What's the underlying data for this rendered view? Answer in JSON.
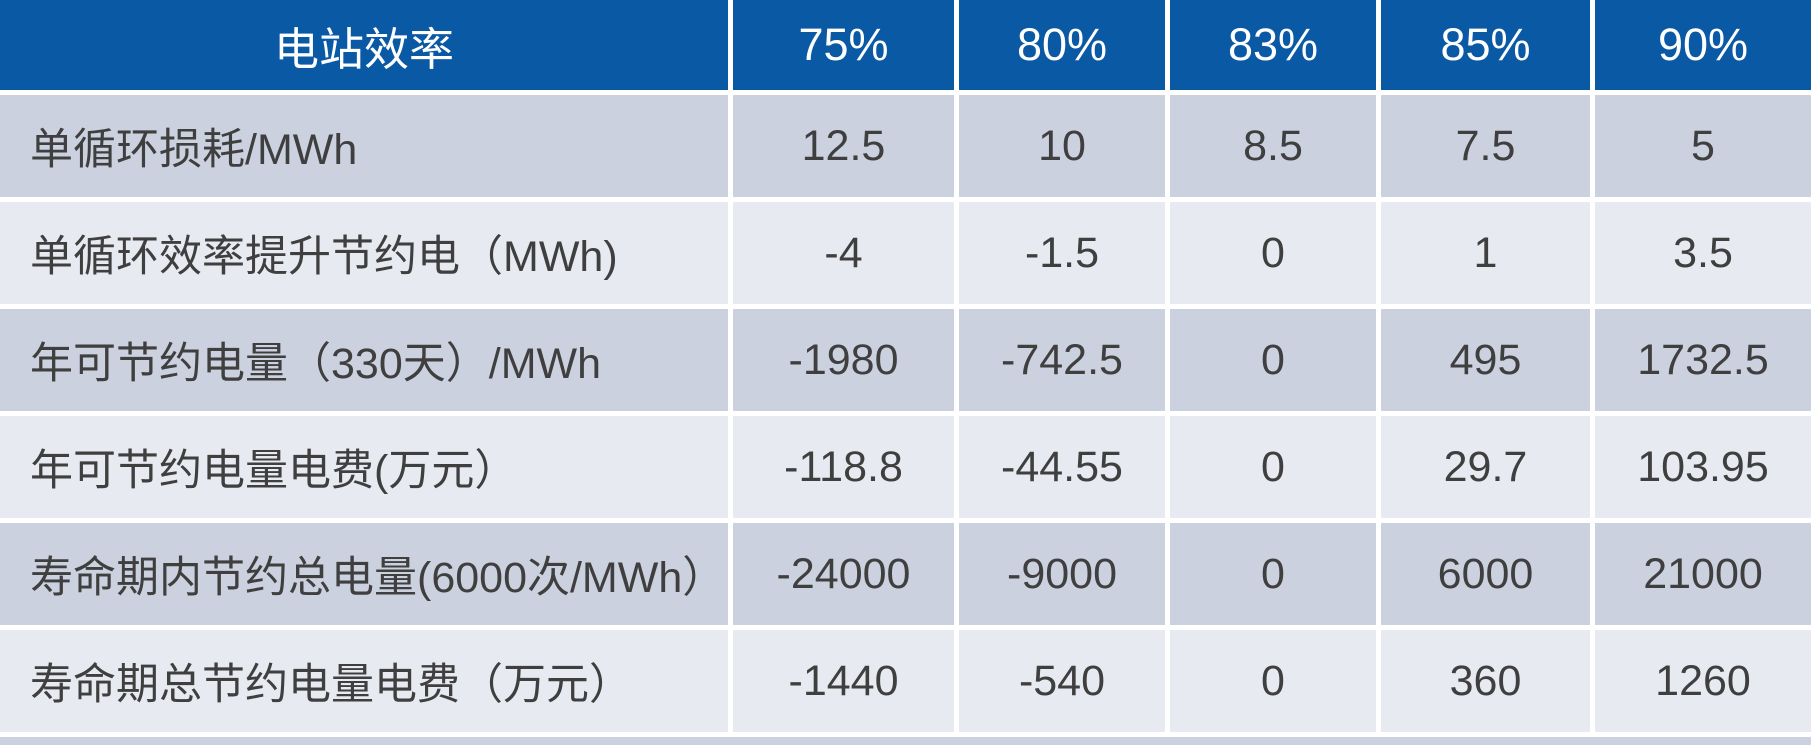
{
  "colors": {
    "header_bg": "#0a59a5",
    "header_text": "#ffffff",
    "row_odd_bg": "#ccd1e0",
    "row_even_bg": "#e8eaf1",
    "cell_text": "#3f3f3f",
    "divider": "#ffffff"
  },
  "table": {
    "header_label": "电站效率",
    "header_columns": [
      "75%",
      "80%",
      "83%",
      "85%",
      "90%"
    ],
    "rows": [
      {
        "label": "单循环损耗/MWh",
        "values": [
          "12.5",
          "10",
          "8.5",
          "7.5",
          "5"
        ]
      },
      {
        "label": "单循环效率提升节约电（MWh)",
        "values": [
          "-4",
          "-1.5",
          "0",
          "1",
          "3.5"
        ]
      },
      {
        "label": "年可节约电量（330天）/MWh",
        "values": [
          "-1980",
          "-742.5",
          "0",
          "495",
          "1732.5"
        ]
      },
      {
        "label": "年可节约电量电费(万元）",
        "values": [
          "-118.8",
          "-44.55",
          "0",
          "29.7",
          "103.95"
        ]
      },
      {
        "label": "寿命期内节约总电量(6000次/MWh）",
        "values": [
          "-24000",
          "-9000",
          "0",
          "6000",
          "21000"
        ]
      },
      {
        "label": "寿命期总节约电量电费（万元）",
        "values": [
          "-1440",
          "-540",
          "0",
          "360",
          "1260"
        ]
      }
    ]
  },
  "chart_data": {
    "type": "table",
    "title": "电站效率",
    "categories": [
      "75%",
      "80%",
      "83%",
      "85%",
      "90%"
    ],
    "series": [
      {
        "name": "单循环损耗/MWh",
        "values": [
          12.5,
          10,
          8.5,
          7.5,
          5
        ]
      },
      {
        "name": "单循环效率提升节约电（MWh)",
        "values": [
          -4,
          -1.5,
          0,
          1,
          3.5
        ]
      },
      {
        "name": "年可节约电量（330天）/MWh",
        "values": [
          -1980,
          -742.5,
          0,
          495,
          1732.5
        ]
      },
      {
        "name": "年可节约电量电费(万元）",
        "values": [
          -118.8,
          -44.55,
          0,
          29.7,
          103.95
        ]
      },
      {
        "name": "寿命期内节约总电量(6000次/MWh）",
        "values": [
          -24000,
          -9000,
          0,
          6000,
          21000
        ]
      },
      {
        "name": "寿命期总节约电量电费（万元）",
        "values": [
          -1440,
          -540,
          0,
          360,
          1260
        ]
      }
    ]
  }
}
